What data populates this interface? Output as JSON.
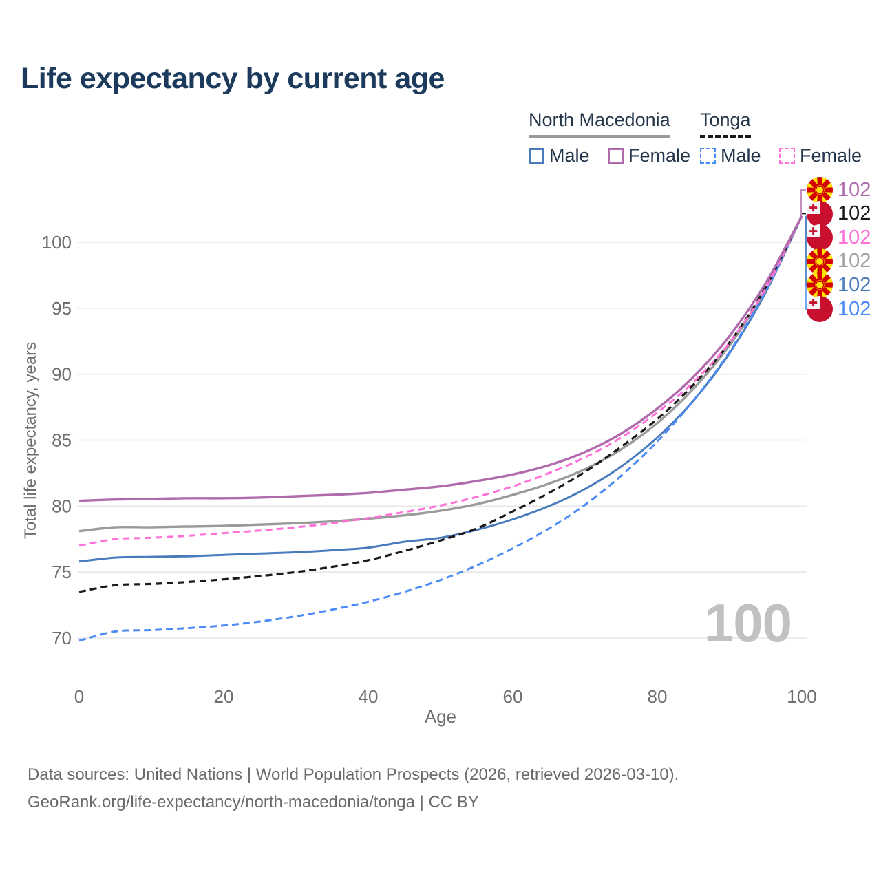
{
  "title": "Life expectancy by current age",
  "watermark": "100",
  "legend": {
    "groups": [
      {
        "label": "North Macedonia",
        "line_style": "solid",
        "underline_color": "#9a9a9a",
        "items": [
          {
            "label": "Male",
            "color": "#4a7cbd",
            "dashed": false
          },
          {
            "label": "Female",
            "color": "#b06bad",
            "dashed": false
          }
        ]
      },
      {
        "label": "Tonga",
        "line_style": "dashed",
        "underline_color": "#1a1a1a",
        "items": [
          {
            "label": "Male",
            "color": "#4b8bf5",
            "dashed": true
          },
          {
            "label": "Female",
            "color": "#ff70d8",
            "dashed": true
          }
        ]
      }
    ]
  },
  "axes": {
    "x": {
      "label": "Age",
      "ticks": [
        0,
        20,
        40,
        60,
        80,
        100
      ],
      "range": [
        0,
        100
      ]
    },
    "y": {
      "label": "Total life expectancy, years",
      "ticks": [
        70,
        75,
        80,
        85,
        90,
        95,
        100
      ],
      "range": [
        69.5,
        103.3
      ],
      "grid": true
    }
  },
  "chart_data": {
    "type": "line",
    "title": "Life expectancy by current age",
    "xlabel": "Age",
    "ylabel": "Total life expectancy, years",
    "legend_position": "top-right",
    "x": [
      0,
      5,
      10,
      15,
      20,
      25,
      30,
      35,
      40,
      45,
      50,
      55,
      60,
      65,
      70,
      75,
      80,
      85,
      90,
      95,
      100
    ],
    "series": [
      {
        "name": "North Macedonia Male",
        "key": "nm_male",
        "country": "north-macedonia",
        "color": "#4a7cbd",
        "dashed": false,
        "width": 3,
        "values": [
          75.8,
          76.1,
          76.15,
          76.2,
          76.3,
          76.4,
          76.5,
          76.65,
          76.85,
          77.3,
          77.6,
          78.2,
          79.0,
          80.0,
          81.3,
          83.0,
          85.2,
          88.0,
          91.6,
          96.2,
          102
        ]
      },
      {
        "name": "North Macedonia (both sexes)",
        "key": "nm_total",
        "country": "north-macedonia",
        "color": "#9a9a9a",
        "dashed": false,
        "width": 3.4,
        "values": [
          78.1,
          78.4,
          78.4,
          78.45,
          78.5,
          78.6,
          78.7,
          78.85,
          79.05,
          79.3,
          79.65,
          80.15,
          80.85,
          81.7,
          82.8,
          84.3,
          86.3,
          88.9,
          92.2,
          96.4,
          102
        ]
      },
      {
        "name": "Tonga Male",
        "key": "tonga_male",
        "country": "tonga",
        "color": "#4b8bf5",
        "dashed": true,
        "width": 3,
        "values": [
          69.8,
          70.5,
          70.6,
          70.75,
          70.95,
          71.25,
          71.65,
          72.15,
          72.75,
          73.5,
          74.4,
          75.5,
          76.8,
          78.3,
          80.1,
          82.3,
          84.9,
          88.0,
          91.7,
          96.3,
          102
        ]
      },
      {
        "name": "Tonga (both sexes)",
        "key": "tonga_total",
        "country": "tonga",
        "color": "#1a1a1a",
        "dashed": true,
        "width": 3.2,
        "values": [
          73.5,
          74.0,
          74.1,
          74.25,
          74.45,
          74.7,
          75.0,
          75.4,
          75.9,
          76.6,
          77.4,
          78.3,
          79.6,
          81.0,
          82.6,
          84.5,
          86.6,
          89.2,
          92.4,
          96.6,
          102
        ]
      },
      {
        "name": "Tonga Female",
        "key": "tonga_female",
        "country": "tonga",
        "color": "#ff70d8",
        "dashed": true,
        "width": 3,
        "values": [
          77.0,
          77.5,
          77.6,
          77.75,
          77.95,
          78.15,
          78.4,
          78.7,
          79.1,
          79.55,
          80.05,
          80.7,
          81.5,
          82.5,
          83.7,
          85.2,
          87.1,
          89.4,
          92.4,
          96.5,
          102
        ]
      },
      {
        "name": "North Macedonia Female",
        "key": "nm_female",
        "country": "north-macedonia",
        "color": "#b06bad",
        "dashed": false,
        "width": 3.4,
        "values": [
          80.4,
          80.5,
          80.55,
          80.6,
          80.6,
          80.65,
          80.75,
          80.85,
          81.0,
          81.25,
          81.5,
          81.9,
          82.4,
          83.1,
          84.1,
          85.5,
          87.4,
          89.8,
          92.9,
          96.9,
          102
        ]
      }
    ],
    "end_labels": [
      {
        "series": "nm_female",
        "country": "north-macedonia",
        "value": "102",
        "color": "#b06bad"
      },
      {
        "series": "tonga_total",
        "country": "tonga",
        "value": "102",
        "color": "#1a1a1a"
      },
      {
        "series": "tonga_female",
        "country": "tonga",
        "value": "102",
        "color": "#ff70d8"
      },
      {
        "series": "nm_total",
        "country": "north-macedonia",
        "value": "102",
        "color": "#a0a0a0"
      },
      {
        "series": "nm_male",
        "country": "north-macedonia",
        "value": "102",
        "color": "#4a7cbd"
      },
      {
        "series": "tonga_male",
        "country": "tonga",
        "value": "102",
        "color": "#4b8bf5"
      }
    ]
  },
  "footer": {
    "line1": "Data sources: United Nations | World Population Prospects (2026, retrieved 2026-03-10).",
    "line2": "GeoRank.org/life-expectancy/north-macedonia/tonga | CC BY"
  }
}
